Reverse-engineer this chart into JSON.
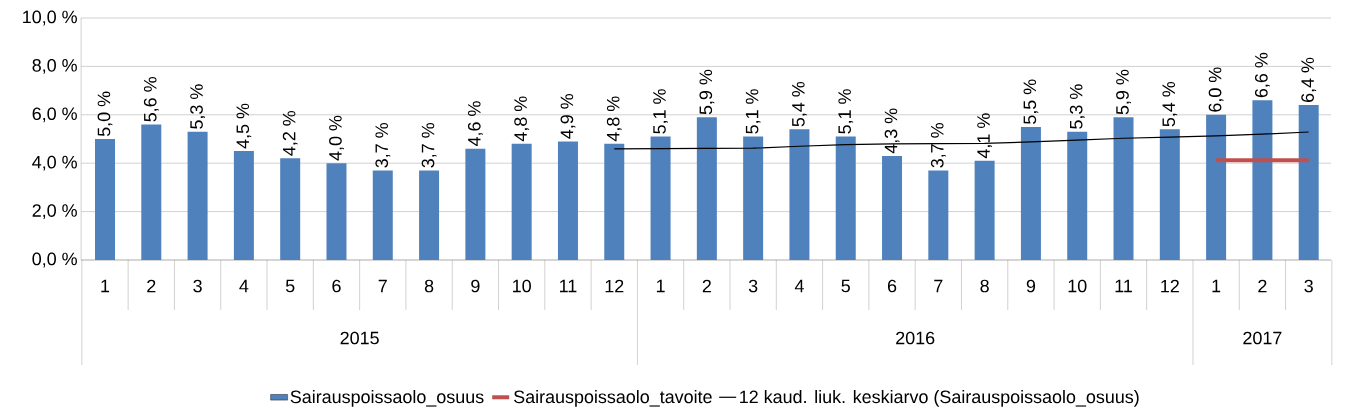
{
  "chart_data": {
    "type": "bar",
    "x": [
      "2015-01",
      "2015-02",
      "2015-03",
      "2015-04",
      "2015-05",
      "2015-06",
      "2015-07",
      "2015-08",
      "2015-09",
      "2015-10",
      "2015-11",
      "2015-12",
      "2016-01",
      "2016-02",
      "2016-03",
      "2016-04",
      "2016-05",
      "2016-06",
      "2016-07",
      "2016-08",
      "2016-09",
      "2016-10",
      "2016-11",
      "2016-12",
      "2017-01",
      "2017-02",
      "2017-03"
    ],
    "xticks": [
      {
        "value": "2015-01",
        "label": "1"
      },
      {
        "value": "2015-02",
        "label": "2"
      },
      {
        "value": "2015-03",
        "label": "3"
      },
      {
        "value": "2015-04",
        "label": "4"
      },
      {
        "value": "2015-05",
        "label": "5"
      },
      {
        "value": "2015-06",
        "label": "6"
      },
      {
        "value": "2015-07",
        "label": "7"
      },
      {
        "value": "2015-08",
        "label": "8"
      },
      {
        "value": "2015-09",
        "label": "9"
      },
      {
        "value": "2015-10",
        "label": "10"
      },
      {
        "value": "2015-11",
        "label": "11"
      },
      {
        "value": "2015-12",
        "label": "12"
      },
      {
        "value": "2016-01",
        "label": "1"
      },
      {
        "value": "2016-02",
        "label": "2"
      },
      {
        "value": "2016-03",
        "label": "3"
      },
      {
        "value": "2016-04",
        "label": "4"
      },
      {
        "value": "2016-05",
        "label": "5"
      },
      {
        "value": "2016-06",
        "label": "6"
      },
      {
        "value": "2016-07",
        "label": "7"
      },
      {
        "value": "2016-08",
        "label": "8"
      },
      {
        "value": "2016-09",
        "label": "9"
      },
      {
        "value": "2016-10",
        "label": "10"
      },
      {
        "value": "2016-11",
        "label": "11"
      },
      {
        "value": "2016-12",
        "label": "12"
      },
      {
        "value": "2017-01",
        "label": "1"
      },
      {
        "value": "2017-02",
        "label": "2"
      },
      {
        "value": "2017-03",
        "label": "3"
      }
    ],
    "annotations": [
      "2015",
      "2016",
      "2017"
    ],
    "xlim": [
      "2014-12-16",
      "2017-03-16"
    ],
    "ylim": [
      0,
      10
    ],
    "yticks": [
      {
        "value": 0,
        "label": "0,0 %"
      },
      {
        "value": 2,
        "label": "2,0 %"
      },
      {
        "value": 4,
        "label": "4,0 %"
      },
      {
        "value": 6,
        "label": "6,0 %"
      },
      {
        "value": 8,
        "label": "8,0 %"
      },
      {
        "value": 10,
        "label": "10,0 %"
      }
    ],
    "grid": "y",
    "legend": "bottom",
    "series": [
      {
        "name": "Sairauspoissaolo_osuus",
        "color": "#4f81bd",
        "values": [
          5.0,
          5.6,
          5.3,
          4.5,
          4.2,
          4.0,
          3.7,
          3.7,
          4.6,
          4.8,
          4.9,
          4.8,
          5.1,
          5.9,
          5.1,
          5.4,
          5.1,
          4.3,
          3.7,
          4.1,
          5.5,
          5.3,
          5.9,
          5.4,
          6.0,
          6.6,
          6.4
        ],
        "value_labels": [
          "5,0 %",
          "5,6 %",
          "5,3 %",
          "4,5 %",
          "4,2 %",
          "4,0 %",
          "3,7 %",
          "3,7 %",
          "4,6 %",
          "4,8 %",
          "4,9 %",
          "4,8 %",
          "5,1 %",
          "5,9 %",
          "5,1 %",
          "5,4 %",
          "5,1 %",
          "4,3 %",
          "3,7 %",
          "4,1 %",
          "5,5 %",
          "5,3 %",
          "5,9 %",
          "5,4 %",
          "6,0 %",
          "6,6 %",
          "6,4 %"
        ]
      },
      {
        "name": "Sairauspoissaolo_tavoite",
        "type": "line",
        "color": "#c0504d",
        "values": [
          null,
          null,
          null,
          null,
          null,
          null,
          null,
          null,
          null,
          null,
          null,
          null,
          null,
          null,
          null,
          null,
          null,
          null,
          null,
          null,
          null,
          null,
          null,
          null,
          4.12,
          4.12,
          4.12
        ]
      },
      {
        "name": "12 kaud. liuk. keskiarvo (Sairauspoissaolo_osuus)",
        "type": "line",
        "color": "#000000",
        "values": [
          null,
          null,
          null,
          null,
          null,
          null,
          null,
          null,
          null,
          null,
          null,
          4.59,
          4.6,
          4.61,
          4.62,
          4.7,
          4.77,
          4.8,
          4.81,
          4.82,
          4.88,
          4.95,
          5.03,
          5.08,
          5.13,
          5.2,
          5.29
        ]
      }
    ]
  }
}
